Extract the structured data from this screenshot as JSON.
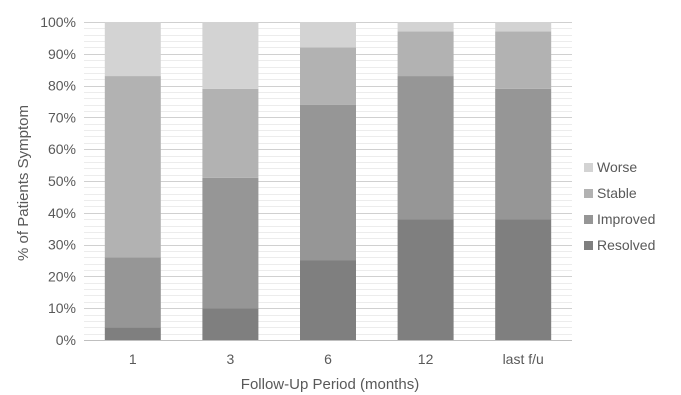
{
  "chart_data": {
    "type": "bar",
    "stacked": true,
    "categories": [
      "1",
      "3",
      "6",
      "12",
      "last f/u"
    ],
    "series": [
      {
        "name": "Resolved",
        "values": [
          4,
          10,
          25,
          38,
          38
        ],
        "color": "#7f7f7f"
      },
      {
        "name": "Improved",
        "values": [
          22,
          41,
          49,
          45,
          41
        ],
        "color": "#969696"
      },
      {
        "name": "Stable",
        "values": [
          57,
          28,
          18,
          14,
          18
        ],
        "color": "#b2b2b2"
      },
      {
        "name": "Worse",
        "values": [
          17,
          21,
          8,
          3,
          3
        ],
        "color": "#d3d3d3"
      }
    ],
    "xlabel": "Follow-Up Period (months)",
    "ylabel": "% of Patients Symptom",
    "ylim": [
      0,
      100
    ],
    "yticks": [
      "0%",
      "10%",
      "20%",
      "30%",
      "40%",
      "50%",
      "60%",
      "70%",
      "80%",
      "90%",
      "100%"
    ],
    "grid": true,
    "legend": "right"
  }
}
